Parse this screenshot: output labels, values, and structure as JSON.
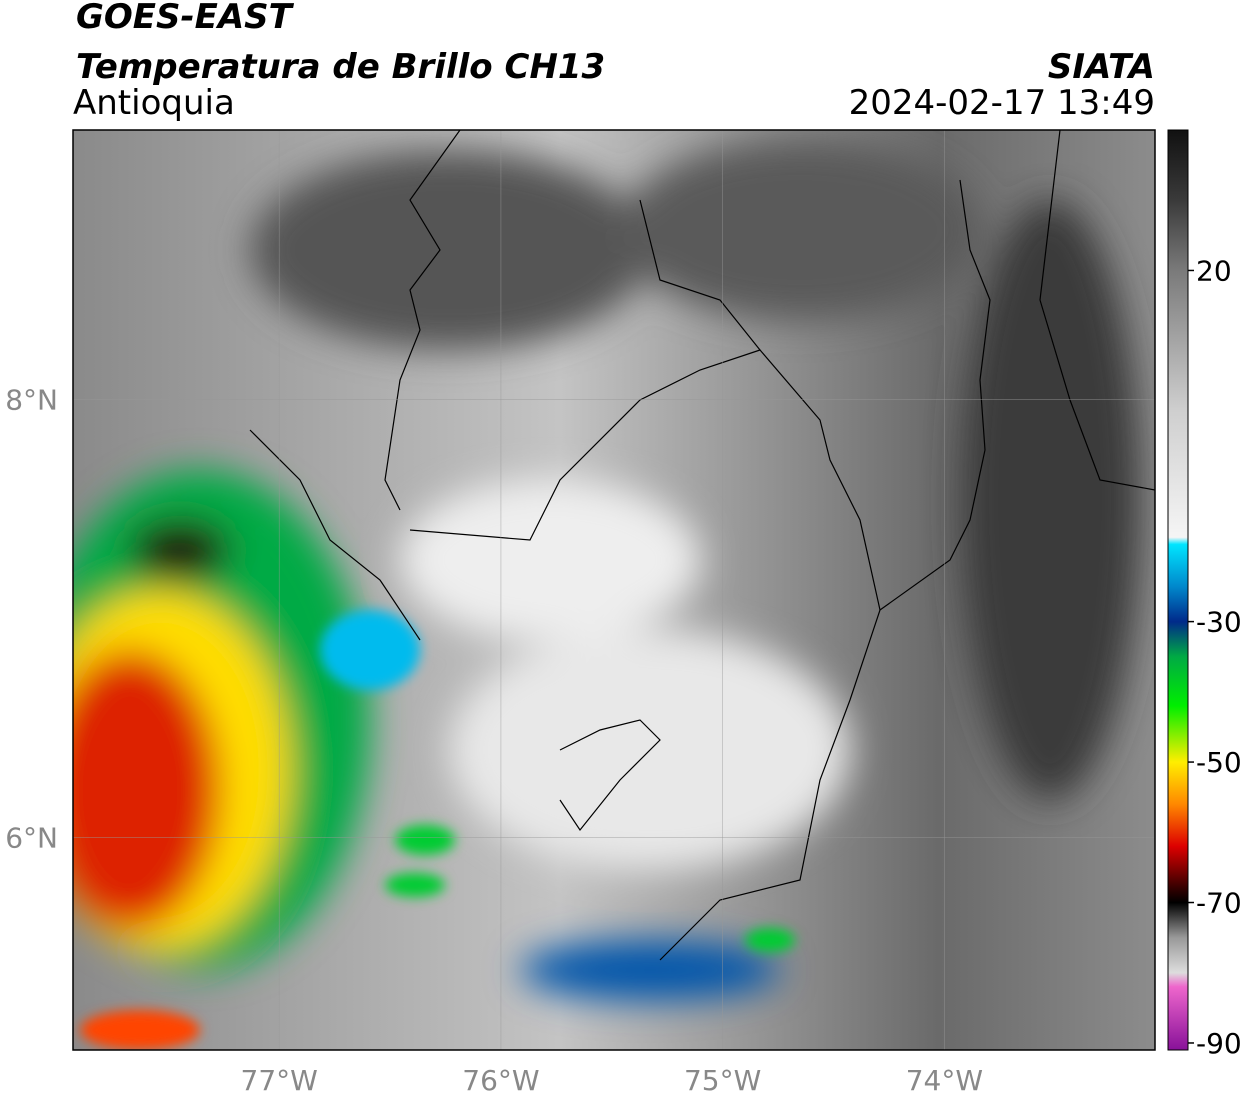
{
  "header": {
    "title": "GOES-EAST",
    "subtitle": "Temperatura de Brillo CH13",
    "region": "Antioquia",
    "agency": "SIATA",
    "datetime": "2024-02-17 13:49"
  },
  "map": {
    "xlim": [
      -77.93,
      -73.05
    ],
    "ylim": [
      5.03,
      9.23
    ],
    "lat_ticks": [
      {
        "value": 8,
        "label": "8°N"
      },
      {
        "value": 6,
        "label": "6°N"
      }
    ],
    "lon_ticks": [
      {
        "value": -77,
        "label": "77°W"
      },
      {
        "value": -76,
        "label": "76°W"
      },
      {
        "value": -75,
        "label": "75°W"
      },
      {
        "value": -74,
        "label": "74°W"
      }
    ],
    "grid": true
  },
  "colorbar": {
    "lim": [
      -91,
      40
    ],
    "ticks": [
      20,
      -30,
      -50,
      -70,
      -90
    ],
    "colormap": [
      {
        "value": 40,
        "color": "#111111"
      },
      {
        "value": 30,
        "color": "#3a3a3a"
      },
      {
        "value": 20,
        "color": "#7a7a7a"
      },
      {
        "value": 0,
        "color": "#cfcfcf"
      },
      {
        "value": -18,
        "color": "#f5f5f5"
      },
      {
        "value": -19,
        "color": "#00e5ff"
      },
      {
        "value": -25,
        "color": "#0088cc"
      },
      {
        "value": -30,
        "color": "#002a8a"
      },
      {
        "value": -35,
        "color": "#00aa44"
      },
      {
        "value": -42,
        "color": "#00ee00"
      },
      {
        "value": -50,
        "color": "#ffee00"
      },
      {
        "value": -56,
        "color": "#ff8800"
      },
      {
        "value": -62,
        "color": "#dd0000"
      },
      {
        "value": -68,
        "color": "#330000"
      },
      {
        "value": -70,
        "color": "#000000"
      },
      {
        "value": -75,
        "color": "#999999"
      },
      {
        "value": -80,
        "color": "#dddddd"
      },
      {
        "value": -82,
        "color": "#ee66cc"
      },
      {
        "value": -91,
        "color": "#881199"
      }
    ]
  }
}
